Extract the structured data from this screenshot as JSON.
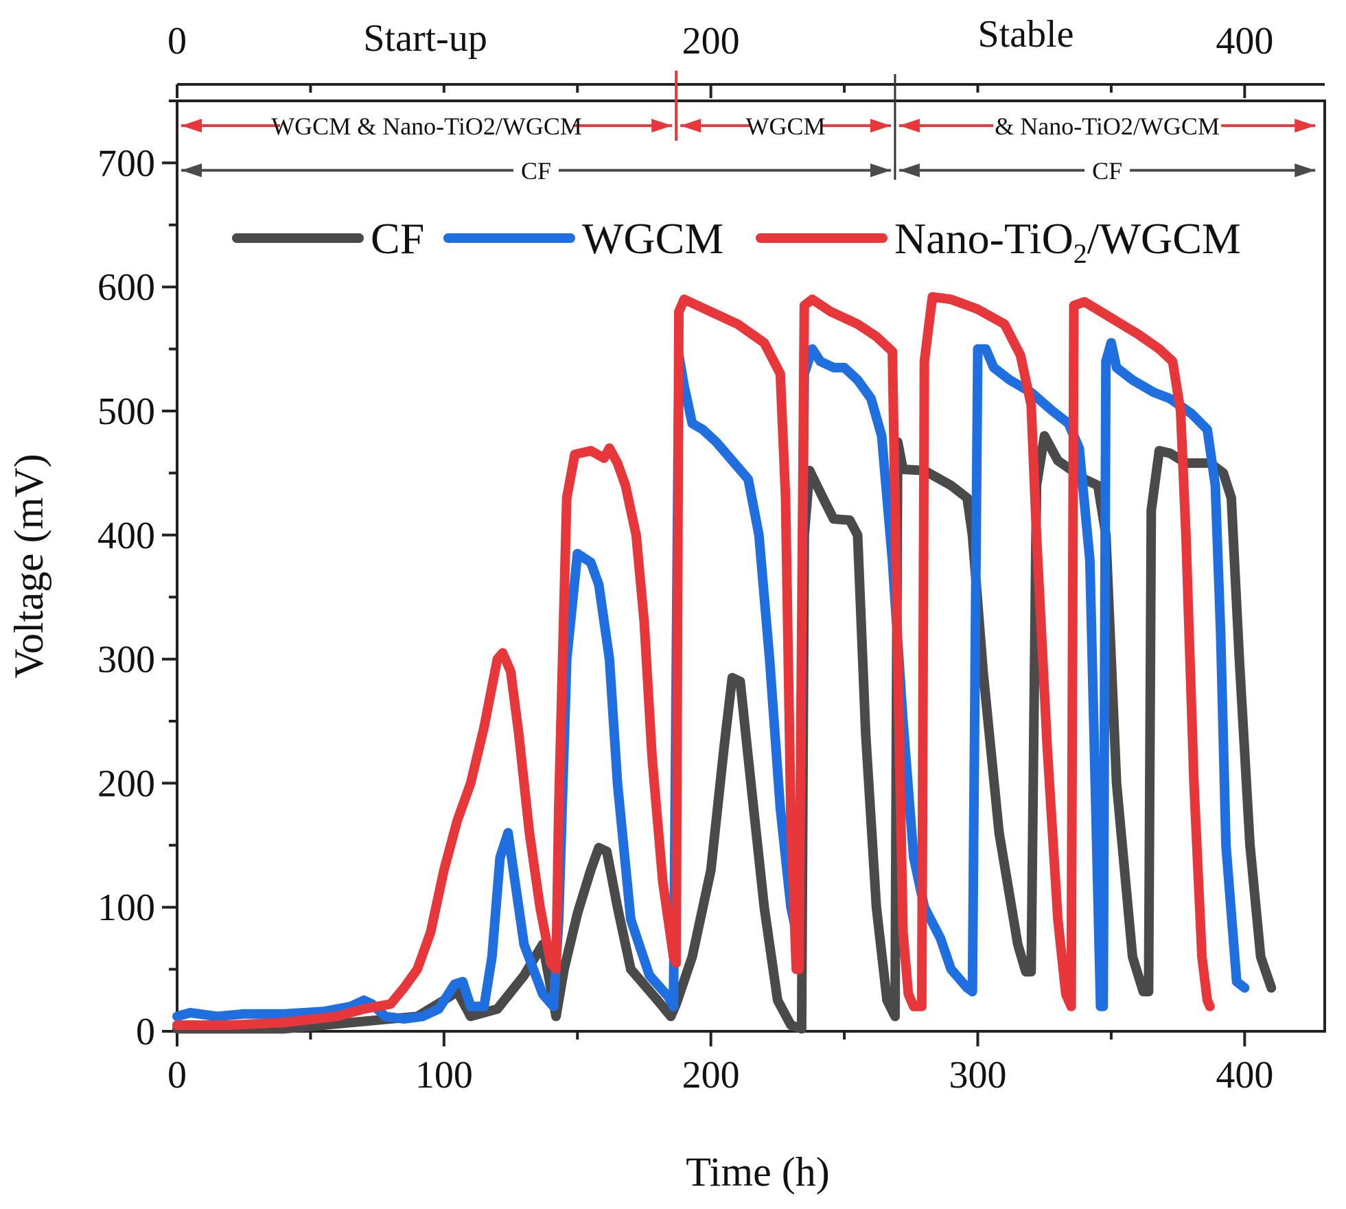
{
  "chart_data": {
    "type": "line",
    "xlabel": "Time (h)",
    "ylabel": "Voltage (mV)",
    "xlim": [
      0,
      430
    ],
    "ylim": [
      0,
      750
    ],
    "x_ticks": [
      0,
      100,
      200,
      300,
      400
    ],
    "y_ticks": [
      0,
      100,
      200,
      300,
      400,
      500,
      600,
      700
    ],
    "top_axis": {
      "ticks": [
        0,
        200,
        400
      ],
      "phases": [
        {
          "label": "Start-up",
          "x": 93
        },
        {
          "label": "Stable",
          "x": 318
        }
      ],
      "divider_red_x": 187,
      "divider_black_x": 269
    },
    "period_annotations": [
      {
        "label": "WGCM & Nano-TiO2/WGCM",
        "from": 0,
        "to": 187,
        "y": 730,
        "color": "#e8373b"
      },
      {
        "label": "WGCM",
        "from": 187,
        "to": 269,
        "y": 730,
        "color": "#e8373b"
      },
      {
        "label": "& Nano-TiO2/WGCM",
        "from": 269,
        "to": 428,
        "y": 730,
        "color": "#e8373b"
      },
      {
        "label": "CF",
        "from": 0,
        "to": 269,
        "y": 694,
        "color": "#4a4a4a"
      },
      {
        "label": "CF",
        "from": 269,
        "to": 428,
        "y": 694,
        "color": "#4a4a4a"
      }
    ],
    "legend": {
      "placement": "top-right",
      "items": [
        {
          "name": "CF",
          "display": "CF",
          "sub": ""
        },
        {
          "name": "WGCM",
          "display": "WGCM",
          "sub": ""
        },
        {
          "name": "Nano-TiO2/WGCM",
          "display": "Nano-TiO",
          "sub": "2",
          "suffix": "/WGCM"
        }
      ]
    },
    "series": [
      {
        "name": "CF",
        "color": "#4a4a4a",
        "points": [
          [
            0,
            2
          ],
          [
            40,
            2
          ],
          [
            70,
            8
          ],
          [
            90,
            12
          ],
          [
            100,
            25
          ],
          [
            105,
            32
          ],
          [
            110,
            12
          ],
          [
            120,
            18
          ],
          [
            130,
            45
          ],
          [
            137,
            70
          ],
          [
            142,
            12
          ],
          [
            145,
            50
          ],
          [
            150,
            95
          ],
          [
            155,
            130
          ],
          [
            158,
            148
          ],
          [
            161,
            145
          ],
          [
            165,
            100
          ],
          [
            170,
            50
          ],
          [
            180,
            25
          ],
          [
            185,
            12
          ],
          [
            187,
            22
          ],
          [
            193,
            60
          ],
          [
            200,
            130
          ],
          [
            205,
            230
          ],
          [
            208,
            285
          ],
          [
            211,
            282
          ],
          [
            215,
            200
          ],
          [
            220,
            100
          ],
          [
            225,
            25
          ],
          [
            230,
            5
          ],
          [
            234,
            2
          ],
          [
            235,
            400
          ],
          [
            237,
            452
          ],
          [
            242,
            430
          ],
          [
            246,
            413
          ],
          [
            252,
            412
          ],
          [
            255,
            400
          ],
          [
            258,
            240
          ],
          [
            262,
            100
          ],
          [
            266,
            25
          ],
          [
            269,
            12
          ],
          [
            270,
            475
          ],
          [
            272,
            453
          ],
          [
            280,
            452
          ],
          [
            290,
            440
          ],
          [
            296,
            430
          ],
          [
            298,
            400
          ],
          [
            302,
            290
          ],
          [
            308,
            160
          ],
          [
            315,
            70
          ],
          [
            318,
            48
          ],
          [
            320,
            48
          ],
          [
            322,
            440
          ],
          [
            325,
            480
          ],
          [
            330,
            460
          ],
          [
            340,
            445
          ],
          [
            345,
            440
          ],
          [
            348,
            400
          ],
          [
            352,
            200
          ],
          [
            358,
            60
          ],
          [
            362,
            32
          ],
          [
            364,
            32
          ],
          [
            365,
            420
          ],
          [
            368,
            468
          ],
          [
            372,
            466
          ],
          [
            378,
            458
          ],
          [
            387,
            458
          ],
          [
            392,
            450
          ],
          [
            395,
            430
          ],
          [
            398,
            300
          ],
          [
            402,
            150
          ],
          [
            406,
            60
          ],
          [
            410,
            35
          ]
        ]
      },
      {
        "name": "WGCM",
        "color": "#1f6fe0",
        "points": [
          [
            0,
            12
          ],
          [
            5,
            15
          ],
          [
            15,
            12
          ],
          [
            25,
            14
          ],
          [
            40,
            14
          ],
          [
            55,
            16
          ],
          [
            65,
            20
          ],
          [
            70,
            25
          ],
          [
            73,
            22
          ],
          [
            78,
            12
          ],
          [
            85,
            10
          ],
          [
            92,
            12
          ],
          [
            98,
            18
          ],
          [
            104,
            38
          ],
          [
            107,
            40
          ],
          [
            110,
            20
          ],
          [
            115,
            20
          ],
          [
            118,
            60
          ],
          [
            121,
            140
          ],
          [
            124,
            160
          ],
          [
            126,
            130
          ],
          [
            130,
            70
          ],
          [
            137,
            30
          ],
          [
            141,
            20
          ],
          [
            143,
            90
          ],
          [
            146,
            300
          ],
          [
            150,
            385
          ],
          [
            155,
            378
          ],
          [
            158,
            360
          ],
          [
            162,
            300
          ],
          [
            165,
            200
          ],
          [
            170,
            90
          ],
          [
            177,
            45
          ],
          [
            184,
            28
          ],
          [
            186,
            20
          ],
          [
            188,
            545
          ],
          [
            190,
            520
          ],
          [
            193,
            490
          ],
          [
            197,
            485
          ],
          [
            202,
            475
          ],
          [
            208,
            460
          ],
          [
            214,
            445
          ],
          [
            218,
            400
          ],
          [
            222,
            300
          ],
          [
            226,
            180
          ],
          [
            230,
            100
          ],
          [
            233,
            70
          ],
          [
            235,
            530
          ],
          [
            238,
            550
          ],
          [
            241,
            540
          ],
          [
            246,
            535
          ],
          [
            250,
            535
          ],
          [
            255,
            525
          ],
          [
            260,
            510
          ],
          [
            264,
            480
          ],
          [
            268,
            380
          ],
          [
            272,
            250
          ],
          [
            276,
            140
          ],
          [
            280,
            100
          ],
          [
            286,
            75
          ],
          [
            290,
            50
          ],
          [
            296,
            35
          ],
          [
            298,
            32
          ],
          [
            300,
            550
          ],
          [
            303,
            550
          ],
          [
            306,
            535
          ],
          [
            312,
            525
          ],
          [
            320,
            515
          ],
          [
            328,
            500
          ],
          [
            334,
            490
          ],
          [
            338,
            470
          ],
          [
            342,
            380
          ],
          [
            344,
            200
          ],
          [
            346,
            20
          ],
          [
            347,
            20
          ],
          [
            348,
            540
          ],
          [
            350,
            555
          ],
          [
            352,
            535
          ],
          [
            358,
            525
          ],
          [
            366,
            515
          ],
          [
            372,
            510
          ],
          [
            380,
            498
          ],
          [
            386,
            485
          ],
          [
            389,
            440
          ],
          [
            391,
            320
          ],
          [
            393,
            150
          ],
          [
            397,
            40
          ],
          [
            400,
            35
          ]
        ]
      },
      {
        "name": "Nano-TiO2/WGCM",
        "color": "#e8373b",
        "points": [
          [
            0,
            5
          ],
          [
            20,
            5
          ],
          [
            40,
            7
          ],
          [
            60,
            12
          ],
          [
            70,
            18
          ],
          [
            75,
            20
          ],
          [
            80,
            22
          ],
          [
            85,
            35
          ],
          [
            90,
            50
          ],
          [
            95,
            80
          ],
          [
            100,
            130
          ],
          [
            105,
            170
          ],
          [
            110,
            200
          ],
          [
            115,
            245
          ],
          [
            120,
            300
          ],
          [
            122,
            305
          ],
          [
            125,
            290
          ],
          [
            128,
            240
          ],
          [
            132,
            160
          ],
          [
            136,
            100
          ],
          [
            140,
            55
          ],
          [
            142,
            50
          ],
          [
            143,
            180
          ],
          [
            146,
            430
          ],
          [
            149,
            465
          ],
          [
            155,
            468
          ],
          [
            160,
            462
          ],
          [
            162,
            470
          ],
          [
            165,
            458
          ],
          [
            168,
            440
          ],
          [
            172,
            400
          ],
          [
            175,
            330
          ],
          [
            178,
            220
          ],
          [
            182,
            120
          ],
          [
            186,
            60
          ],
          [
            187,
            55
          ],
          [
            188,
            580
          ],
          [
            190,
            590
          ],
          [
            195,
            585
          ],
          [
            200,
            580
          ],
          [
            210,
            570
          ],
          [
            220,
            555
          ],
          [
            226,
            530
          ],
          [
            228,
            430
          ],
          [
            230,
            170
          ],
          [
            232,
            50
          ],
          [
            233,
            50
          ],
          [
            235,
            585
          ],
          [
            238,
            590
          ],
          [
            245,
            580
          ],
          [
            255,
            570
          ],
          [
            262,
            560
          ],
          [
            268,
            548
          ],
          [
            270,
            300
          ],
          [
            272,
            80
          ],
          [
            274,
            30
          ],
          [
            276,
            20
          ],
          [
            279,
            20
          ],
          [
            280,
            540
          ],
          [
            283,
            592
          ],
          [
            290,
            590
          ],
          [
            300,
            582
          ],
          [
            310,
            570
          ],
          [
            316,
            545
          ],
          [
            320,
            505
          ],
          [
            322,
            400
          ],
          [
            326,
            230
          ],
          [
            330,
            90
          ],
          [
            333,
            30
          ],
          [
            335,
            20
          ],
          [
            336,
            585
          ],
          [
            340,
            588
          ],
          [
            350,
            575
          ],
          [
            360,
            562
          ],
          [
            368,
            550
          ],
          [
            373,
            540
          ],
          [
            376,
            500
          ],
          [
            378,
            400
          ],
          [
            381,
            200
          ],
          [
            384,
            60
          ],
          [
            386,
            25
          ],
          [
            387,
            20
          ]
        ]
      }
    ]
  }
}
